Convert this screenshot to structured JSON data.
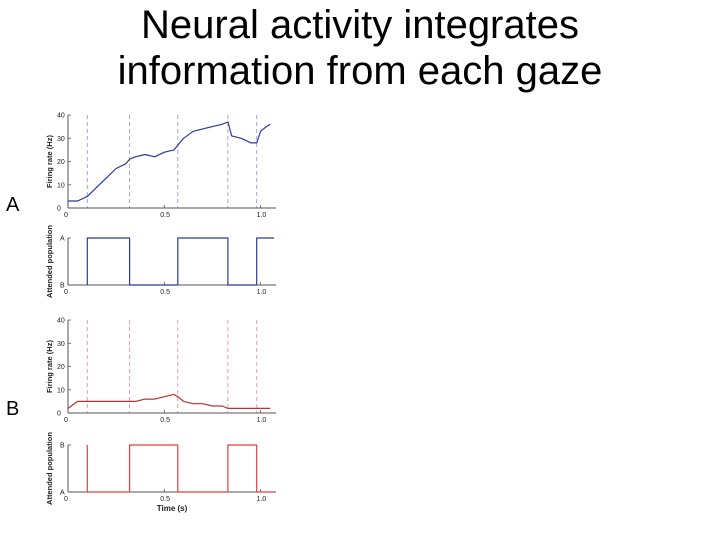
{
  "slide": {
    "title_line1": "Neural activity integrates",
    "title_line2": "information from each gaze",
    "panel_labels": [
      "A",
      "B"
    ]
  },
  "chart_data": [
    {
      "id": "A-rate",
      "type": "line",
      "color": "#2a3aa0",
      "ylabel": "Firing rate (Hz)",
      "xlabel": "",
      "xlim": [
        0,
        1.08
      ],
      "ylim": [
        0,
        40
      ],
      "yticks": [
        0,
        10,
        20,
        30,
        40
      ],
      "xticks": [
        0,
        0.5,
        1.0
      ],
      "xticklabels": [
        "0",
        "0.5",
        "1.0"
      ],
      "gaze_shifts": [
        0.1,
        0.32,
        0.57,
        0.83,
        0.98
      ],
      "series": [
        {
          "x": [
            0,
            0.05,
            0.1,
            0.15,
            0.2,
            0.25,
            0.3,
            0.32,
            0.35,
            0.4,
            0.45,
            0.5,
            0.55,
            0.57,
            0.6,
            0.65,
            0.7,
            0.75,
            0.8,
            0.83,
            0.85,
            0.9,
            0.95,
            0.98,
            1.0,
            1.03,
            1.05
          ],
          "y": [
            3,
            3,
            5,
            9,
            13,
            17,
            19,
            21,
            22,
            23,
            22,
            24,
            25,
            27,
            30,
            33,
            34,
            35,
            36,
            37,
            31,
            30,
            28,
            28,
            33,
            35,
            36
          ]
        }
      ]
    },
    {
      "id": "A-pop",
      "type": "line",
      "color": "#2a3aa0",
      "ylabel": "Attended population",
      "xlabel": "",
      "xlim": [
        0,
        1.08
      ],
      "ylim": [
        0,
        1
      ],
      "ylevels": [
        0,
        1
      ],
      "yticklabels": [
        "B",
        "A"
      ],
      "xticks": [
        0,
        0.5,
        1.0
      ],
      "xticklabels": [
        "0",
        "0.5",
        "1.0"
      ],
      "series": [
        {
          "x": [
            0.1,
            0.1,
            0.32,
            0.32,
            0.57,
            0.57,
            0.83,
            0.83,
            0.98,
            0.98,
            1.07
          ],
          "y": [
            0,
            1,
            1,
            0,
            0,
            1,
            1,
            0,
            0,
            1,
            1
          ]
        }
      ]
    },
    {
      "id": "B-rate",
      "type": "line",
      "color": "#c03030",
      "ylabel": "Firing rate (Hz)",
      "xlabel": "",
      "xlim": [
        0,
        1.08
      ],
      "ylim": [
        0,
        40
      ],
      "yticks": [
        0,
        10,
        20,
        30,
        40
      ],
      "xticks": [
        0,
        0.5,
        1.0
      ],
      "xticklabels": [
        "0",
        "0.5",
        "1.0"
      ],
      "gaze_shifts": [
        0.1,
        0.32,
        0.57,
        0.83,
        0.98
      ],
      "series": [
        {
          "x": [
            0,
            0.05,
            0.1,
            0.15,
            0.2,
            0.25,
            0.3,
            0.32,
            0.35,
            0.4,
            0.45,
            0.5,
            0.55,
            0.57,
            0.6,
            0.65,
            0.7,
            0.75,
            0.8,
            0.83,
            0.85,
            0.9,
            0.95,
            1.0,
            1.05
          ],
          "y": [
            2,
            5,
            5,
            5,
            5,
            5,
            5,
            5,
            5,
            6,
            6,
            7,
            8,
            7,
            5,
            4,
            4,
            3,
            3,
            2,
            2,
            2,
            2,
            2,
            2
          ]
        }
      ]
    },
    {
      "id": "B-pop",
      "type": "line",
      "color": "#e04040",
      "ylabel": "Attended population",
      "xlabel": "Time (s)",
      "xlim": [
        0,
        1.08
      ],
      "ylim": [
        0,
        1
      ],
      "ylevels": [
        0,
        1
      ],
      "yticklabels": [
        "A",
        "B"
      ],
      "xticks": [
        0,
        0.5,
        1.0
      ],
      "xticklabels": [
        "0",
        "0.5",
        "1.0"
      ],
      "series": [
        {
          "x": [
            0.1,
            0.1,
            0.32,
            0.32,
            0.57,
            0.57,
            0.83,
            0.83,
            0.98,
            0.98,
            1.07
          ],
          "y": [
            1,
            0,
            0,
            1,
            1,
            0,
            0,
            1,
            1,
            0,
            0
          ]
        }
      ]
    }
  ]
}
